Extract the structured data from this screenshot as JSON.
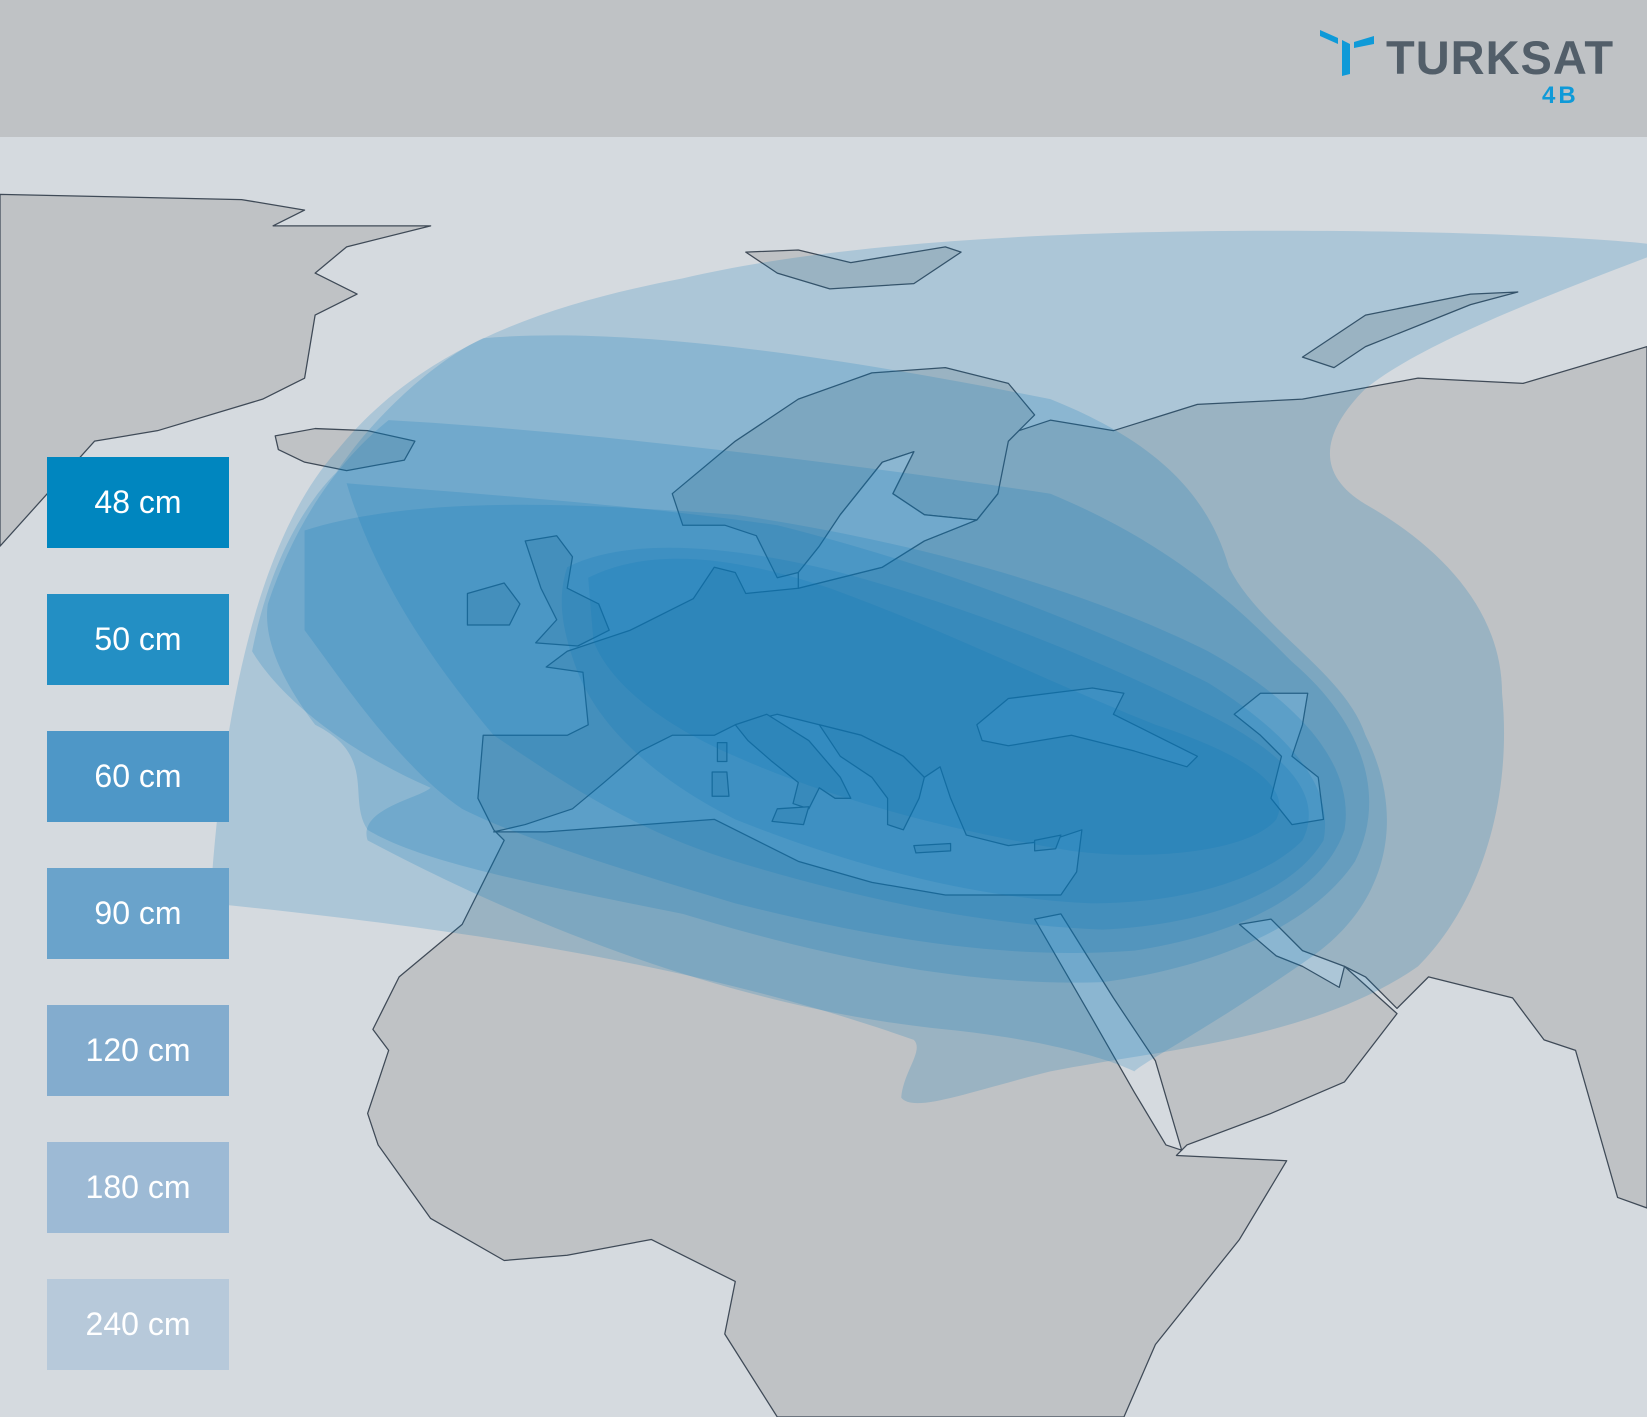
{
  "logo": {
    "brand": "TURKSAT",
    "model": "4B",
    "brand_color": "#525e69",
    "accent_color": "#0f9ad8"
  },
  "colors": {
    "header": "#bfc2c5",
    "sea": "#d5dadf",
    "land": "#bfc2c5",
    "border": "#3f4a57",
    "beam": "#0a78b8"
  },
  "legend": [
    {
      "label": "48 cm",
      "color": "#0086bf"
    },
    {
      "label": "50 cm",
      "color": "#238fc4"
    },
    {
      "label": "60 cm",
      "color": "#4e97c7"
    },
    {
      "label": "90 cm",
      "color": "#6aa3cb"
    },
    {
      "label": "120 cm",
      "color": "#83acce"
    },
    {
      "label": "180 cm",
      "color": "#9dbad5"
    },
    {
      "label": "240 cm",
      "color": "#b7c9da"
    }
  ]
}
